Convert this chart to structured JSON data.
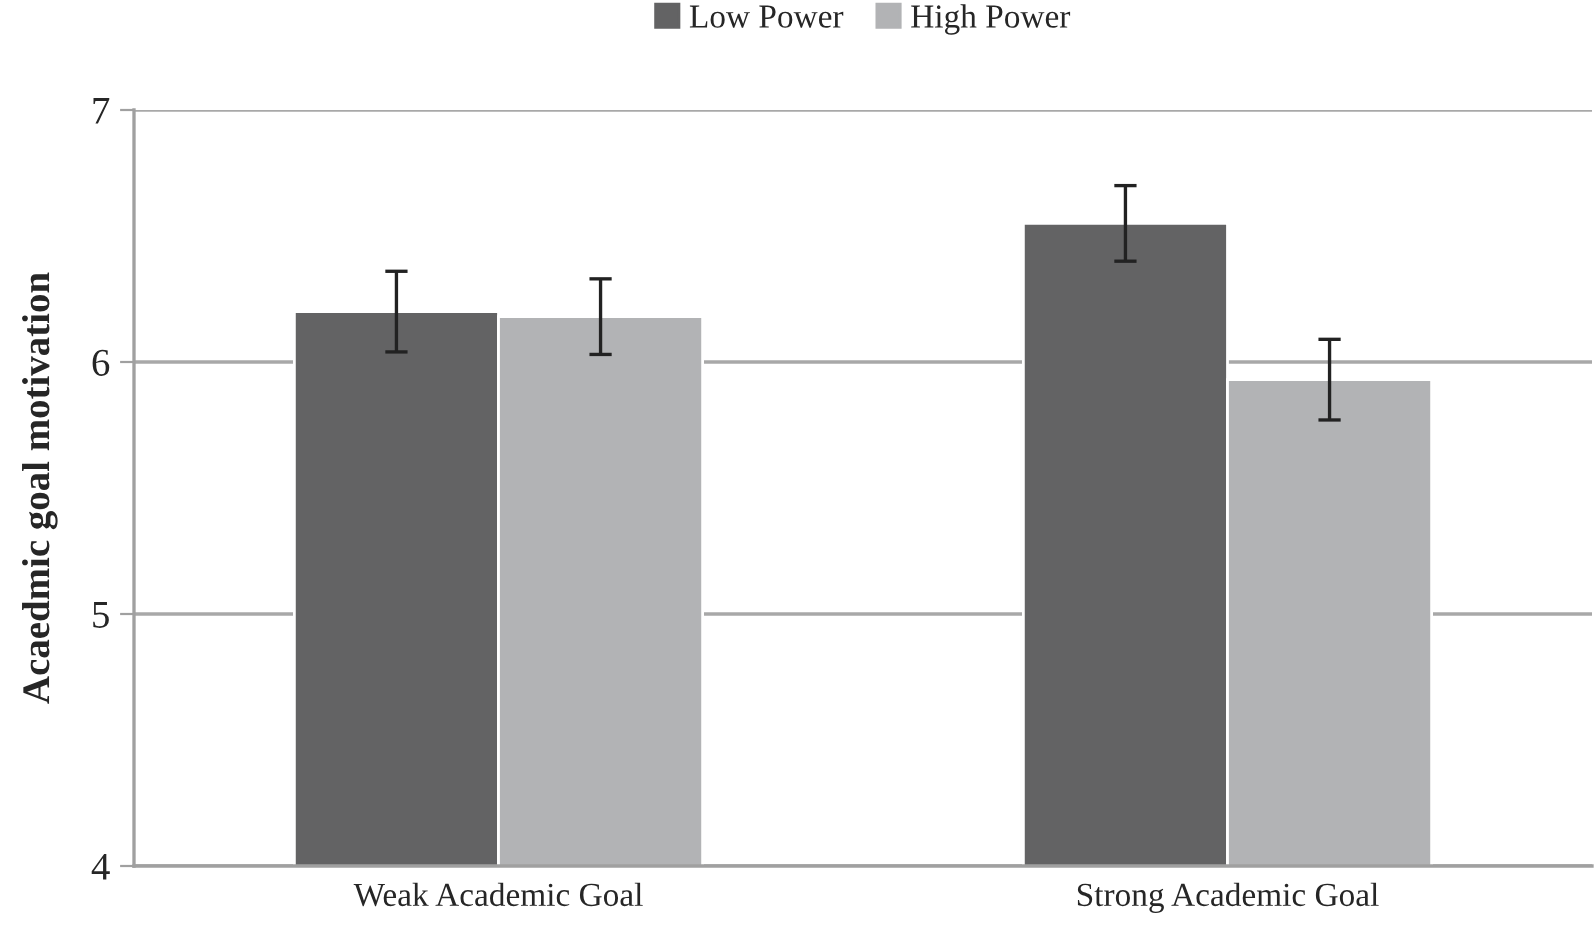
{
  "chart_data": {
    "type": "bar",
    "ylabel": "Acaedmic goal motivation",
    "categories": [
      "Weak Academic Goal",
      "Strong Academic Goal"
    ],
    "series": [
      {
        "name": "Low Power",
        "color": "#636364",
        "values": [
          6.2,
          6.55
        ],
        "errors": [
          0.16,
          0.15
        ]
      },
      {
        "name": "High Power",
        "color": "#b2b3b5",
        "values": [
          6.18,
          5.93
        ],
        "errors": [
          0.15,
          0.16
        ]
      }
    ],
    "ylim": [
      4,
      7
    ],
    "yticks": [
      4,
      5,
      6,
      7
    ],
    "grid": "y",
    "legend": "top"
  }
}
